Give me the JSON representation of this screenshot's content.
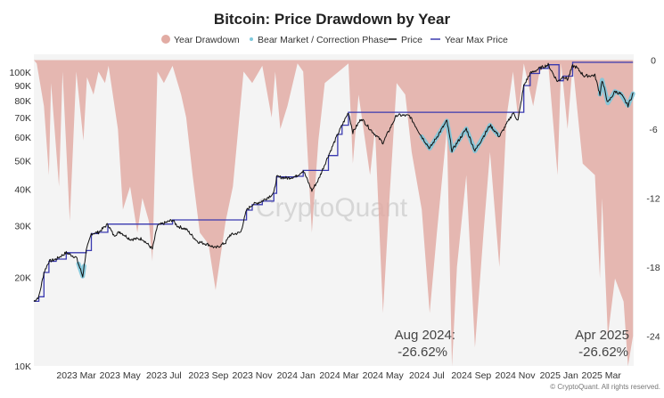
{
  "chart_data": {
    "type": "line",
    "title": "Bitcoin: Price Drawdown by Year",
    "legend": {
      "placement": "top",
      "entries": [
        {
          "label": "Year Drawdown",
          "color": "#e2aca4",
          "marker": "circle"
        },
        {
          "label": "Bear Market / Correction Phase",
          "color": "#7ec8dc",
          "marker": "dot"
        },
        {
          "label": "Price",
          "color": "#111111",
          "marker": "line"
        },
        {
          "label": "Year Max Price",
          "color": "#3a3ab0",
          "marker": "line"
        }
      ]
    },
    "x_ticks": [
      "2023 Mar",
      "2023 May",
      "2023 Jul",
      "2023 Sep",
      "2023 Nov",
      "2024 Jan",
      "2024 Mar",
      "2024 May",
      "2024 Jul",
      "2024 Sep",
      "2024 Nov",
      "2025 Jan",
      "2025 Mar"
    ],
    "x_range": [
      "2023-01-01",
      "2025-04-15"
    ],
    "y_left": {
      "scale": "log",
      "range": [
        10000,
        115000
      ],
      "ticks": [
        "10K",
        "20K",
        "30K",
        "40K",
        "50K",
        "60K",
        "70K",
        "80K",
        "90K",
        "100K"
      ]
    },
    "y_right": {
      "range": [
        -26.6,
        0.5
      ],
      "ticks": [
        "0",
        "-6",
        "-12",
        "-18",
        "-24"
      ]
    },
    "grid": false,
    "price_series": {
      "name": "Price",
      "color": "#111111",
      "points": [
        [
          "2023-01-01",
          16600
        ],
        [
          "2023-01-08",
          17200
        ],
        [
          "2023-01-15",
          20800
        ],
        [
          "2023-01-22",
          22700
        ],
        [
          "2023-02-01",
          23100
        ],
        [
          "2023-02-15",
          24300
        ],
        [
          "2023-03-01",
          23400
        ],
        [
          "2023-03-10",
          20200
        ],
        [
          "2023-03-15",
          24700
        ],
        [
          "2023-03-22",
          28200
        ],
        [
          "2023-04-01",
          28500
        ],
        [
          "2023-04-14",
          30400
        ],
        [
          "2023-04-22",
          27800
        ],
        [
          "2023-05-01",
          28600
        ],
        [
          "2023-05-15",
          27000
        ],
        [
          "2023-06-01",
          27100
        ],
        [
          "2023-06-15",
          25000
        ],
        [
          "2023-06-22",
          30000
        ],
        [
          "2023-07-01",
          30600
        ],
        [
          "2023-07-13",
          31400
        ],
        [
          "2023-07-20",
          29900
        ],
        [
          "2023-08-01",
          29200
        ],
        [
          "2023-08-17",
          26500
        ],
        [
          "2023-09-01",
          25900
        ],
        [
          "2023-09-11",
          25200
        ],
        [
          "2023-09-25",
          26300
        ],
        [
          "2023-10-01",
          27900
        ],
        [
          "2023-10-16",
          28500
        ],
        [
          "2023-10-24",
          33900
        ],
        [
          "2023-11-01",
          35400
        ],
        [
          "2023-11-15",
          36400
        ],
        [
          "2023-12-01",
          38700
        ],
        [
          "2023-12-05",
          44000
        ],
        [
          "2023-12-20",
          43600
        ],
        [
          "2024-01-01",
          44200
        ],
        [
          "2024-01-11",
          46300
        ],
        [
          "2024-01-23",
          39500
        ],
        [
          "2024-02-01",
          43000
        ],
        [
          "2024-02-15",
          52000
        ],
        [
          "2024-02-28",
          61400
        ],
        [
          "2024-03-05",
          66000
        ],
        [
          "2024-03-14",
          73000
        ],
        [
          "2024-03-20",
          62500
        ],
        [
          "2024-04-01",
          69600
        ],
        [
          "2024-04-13",
          64000
        ],
        [
          "2024-05-01",
          57500
        ],
        [
          "2024-05-20",
          71400
        ],
        [
          "2024-06-07",
          71000
        ],
        [
          "2024-06-24",
          60300
        ],
        [
          "2024-07-05",
          55000
        ],
        [
          "2024-07-29",
          68300
        ],
        [
          "2024-08-05",
          54000
        ],
        [
          "2024-08-25",
          64200
        ],
        [
          "2024-09-06",
          53900
        ],
        [
          "2024-09-27",
          66000
        ],
        [
          "2024-10-10",
          60300
        ],
        [
          "2024-10-29",
          72700
        ],
        [
          "2024-11-05",
          68500
        ],
        [
          "2024-11-13",
          90000
        ],
        [
          "2024-11-22",
          99000
        ],
        [
          "2024-12-05",
          103000
        ],
        [
          "2024-12-17",
          106000
        ],
        [
          "2024-12-30",
          92800
        ],
        [
          "2025-01-07",
          96900
        ],
        [
          "2025-01-13",
          94500
        ],
        [
          "2025-01-20",
          105000
        ],
        [
          "2025-01-25",
          104000
        ],
        [
          "2025-02-05",
          97000
        ],
        [
          "2025-02-20",
          97500
        ],
        [
          "2025-02-27",
          84000
        ],
        [
          "2025-03-02",
          94000
        ],
        [
          "2025-03-10",
          78500
        ],
        [
          "2025-03-20",
          86000
        ],
        [
          "2025-03-28",
          84300
        ],
        [
          "2025-04-07",
          77000
        ],
        [
          "2025-04-14",
          84500
        ]
      ]
    },
    "year_max_series": {
      "name": "Year Max Price",
      "color": "#3a3ab0",
      "points": [
        [
          "2023-01-01",
          16600
        ],
        [
          "2023-01-08",
          17200
        ],
        [
          "2023-01-15",
          20800
        ],
        [
          "2023-01-22",
          22700
        ],
        [
          "2023-02-01",
          23100
        ],
        [
          "2023-02-15",
          24300
        ],
        [
          "2023-03-15",
          24700
        ],
        [
          "2023-03-22",
          28200
        ],
        [
          "2023-04-01",
          28500
        ],
        [
          "2023-04-14",
          30400
        ],
        [
          "2023-06-22",
          30400
        ],
        [
          "2023-07-13",
          31400
        ],
        [
          "2023-10-16",
          31400
        ],
        [
          "2023-10-24",
          33900
        ],
        [
          "2023-11-01",
          35400
        ],
        [
          "2023-11-15",
          36400
        ],
        [
          "2023-12-01",
          38700
        ],
        [
          "2023-12-05",
          44000
        ],
        [
          "2023-12-31",
          44000
        ],
        [
          "2024-01-01",
          44200
        ],
        [
          "2024-01-11",
          46300
        ],
        [
          "2024-02-15",
          52000
        ],
        [
          "2024-02-28",
          61400
        ],
        [
          "2024-03-05",
          66000
        ],
        [
          "2024-03-14",
          73000
        ],
        [
          "2024-11-05",
          73000
        ],
        [
          "2024-11-13",
          90000
        ],
        [
          "2024-11-22",
          99000
        ],
        [
          "2024-12-05",
          103000
        ],
        [
          "2024-12-17",
          106000
        ],
        [
          "2024-12-31",
          106000
        ],
        [
          "2025-01-01",
          93500
        ],
        [
          "2025-01-07",
          96900
        ],
        [
          "2025-01-20",
          108000
        ],
        [
          "2025-04-14",
          108000
        ]
      ]
    },
    "bear_phases": [
      [
        "2023-03-04",
        "2023-03-12"
      ],
      [
        "2024-06-24",
        "2024-10-08"
      ],
      [
        "2025-02-27",
        "2025-04-14"
      ]
    ],
    "drawdown_series": {
      "name": "Year Drawdown",
      "color": "#e2aca4",
      "points": [
        [
          "2023-01-05",
          -0.3
        ],
        [
          "2023-01-15",
          -4
        ],
        [
          "2023-01-22",
          -10
        ],
        [
          "2023-01-25",
          -2
        ],
        [
          "2023-02-05",
          -11
        ],
        [
          "2023-02-10",
          -1
        ],
        [
          "2023-02-20",
          -14
        ],
        [
          "2023-03-01",
          -1
        ],
        [
          "2023-03-11",
          -7
        ],
        [
          "2023-03-16",
          -1.5
        ],
        [
          "2023-03-25",
          -3
        ],
        [
          "2023-04-01",
          -1
        ],
        [
          "2023-04-10",
          -2
        ],
        [
          "2023-04-15",
          -0.5
        ],
        [
          "2023-04-28",
          -6
        ],
        [
          "2023-05-05",
          -13
        ],
        [
          "2023-05-15",
          -11
        ],
        [
          "2023-05-25",
          -15
        ],
        [
          "2023-06-01",
          -12
        ],
        [
          "2023-06-10",
          -14
        ],
        [
          "2023-06-15",
          -17.5
        ],
        [
          "2023-06-22",
          -1
        ],
        [
          "2023-07-01",
          -2
        ],
        [
          "2023-07-13",
          -0.5
        ],
        [
          "2023-07-25",
          -3
        ],
        [
          "2023-08-01",
          -5
        ],
        [
          "2023-08-10",
          -10
        ],
        [
          "2023-08-20",
          -15
        ],
        [
          "2023-09-01",
          -16
        ],
        [
          "2023-09-11",
          -20
        ],
        [
          "2023-09-25",
          -14
        ],
        [
          "2023-10-05",
          -11
        ],
        [
          "2023-10-20",
          -1
        ],
        [
          "2023-11-01",
          -2
        ],
        [
          "2023-11-15",
          -0.5
        ],
        [
          "2023-11-28",
          -5
        ],
        [
          "2023-12-03",
          -1
        ],
        [
          "2023-12-10",
          -6
        ],
        [
          "2023-12-20",
          -4
        ],
        [
          "2024-01-03",
          -0.3
        ],
        [
          "2024-01-11",
          -1
        ],
        [
          "2024-01-23",
          -15
        ],
        [
          "2024-02-01",
          -7
        ],
        [
          "2024-02-10",
          -2
        ],
        [
          "2024-03-14",
          -0.3
        ],
        [
          "2024-03-20",
          -9
        ],
        [
          "2024-03-28",
          -3
        ],
        [
          "2024-04-13",
          -10
        ],
        [
          "2024-04-20",
          -6
        ],
        [
          "2024-05-01",
          -22
        ],
        [
          "2024-05-10",
          -12
        ],
        [
          "2024-05-20",
          -2
        ],
        [
          "2024-06-01",
          -3
        ],
        [
          "2024-06-10",
          -8
        ],
        [
          "2024-06-24",
          -13
        ],
        [
          "2024-07-05",
          -22
        ],
        [
          "2024-07-15",
          -15
        ],
        [
          "2024-07-29",
          -6
        ],
        [
          "2024-08-05",
          -26.62
        ],
        [
          "2024-08-12",
          -18
        ],
        [
          "2024-08-25",
          -10
        ],
        [
          "2024-09-06",
          -25
        ],
        [
          "2024-09-18",
          -15
        ],
        [
          "2024-09-27",
          -8
        ],
        [
          "2024-10-10",
          -18
        ],
        [
          "2024-10-20",
          -5
        ],
        [
          "2024-10-29",
          -1
        ],
        [
          "2024-11-05",
          -5
        ],
        [
          "2024-11-13",
          -0.3
        ],
        [
          "2024-11-26",
          -4
        ],
        [
          "2024-12-05",
          -1
        ],
        [
          "2024-12-17",
          -0.3
        ],
        [
          "2024-12-30",
          -10
        ],
        [
          "2025-01-04",
          -0.3
        ],
        [
          "2025-01-13",
          -6
        ],
        [
          "2025-01-20",
          -0.3
        ],
        [
          "2025-02-03",
          -9
        ],
        [
          "2025-02-20",
          -10
        ],
        [
          "2025-02-27",
          -19
        ],
        [
          "2025-03-02",
          -12
        ],
        [
          "2025-03-10",
          -24
        ],
        [
          "2025-03-20",
          -19
        ],
        [
          "2025-04-01",
          -21
        ],
        [
          "2025-04-07",
          -26.62
        ],
        [
          "2025-04-14",
          -24
        ]
      ]
    },
    "annotations": [
      {
        "text": "Aug 2024:",
        "value": "-26.62%",
        "date": "2024-08-05"
      },
      {
        "text": "Apr 2025",
        "value": "-26.62%",
        "date": "2025-04-07"
      }
    ],
    "watermark": "CryptoQuant",
    "credit": "© CryptoQuant. All rights reserved."
  }
}
